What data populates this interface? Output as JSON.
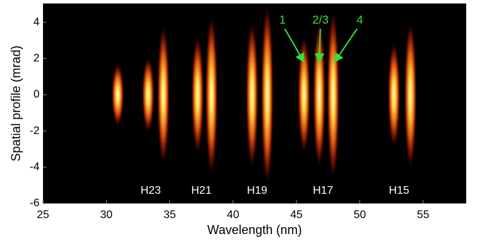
{
  "chart_data": {
    "type": "image",
    "xlabel": "Wavelength (nm)",
    "ylabel": "Spatial profile (mrad)",
    "xlim": [
      25,
      58.4
    ],
    "ylim": [
      -6,
      5.04
    ],
    "xticks": [
      25,
      30,
      35,
      40,
      45,
      50,
      55
    ],
    "yticks": [
      -6,
      -4,
      -2,
      0,
      2,
      4
    ],
    "emission": {
      "x": [
        30.9,
        33.3,
        34.5,
        37.2,
        38.3,
        41.5,
        42.7,
        45.6,
        46.8,
        47.9,
        52.7,
        54.0
      ],
      "values": [
        1.5,
        1.8,
        3.3,
        2.8,
        3.8,
        3.5,
        4.3,
        2.8,
        3.5,
        4.0,
        2.5,
        3.5
      ]
    },
    "harmonic_labels": [
      {
        "text": "H23",
        "x": 33.5,
        "y": -5.3
      },
      {
        "text": "H21",
        "x": 37.5,
        "y": -5.3
      },
      {
        "text": "H19",
        "x": 41.9,
        "y": -5.3
      },
      {
        "text": "H17",
        "x": 47.1,
        "y": -5.3
      },
      {
        "text": "H15",
        "x": 53.1,
        "y": -5.3
      }
    ],
    "annotations": [
      {
        "text": "1",
        "x": 43.9,
        "y": 4.1,
        "target_x": 45.6,
        "target_y": 1.8
      },
      {
        "text": "2/3",
        "x": 46.9,
        "y": 4.1,
        "target_x": 46.8,
        "target_y": 1.8
      },
      {
        "text": "4",
        "x": 50.0,
        "y": 4.1,
        "target_x": 48.0,
        "target_y": 1.8
      }
    ],
    "annotation_color": "#33e033"
  }
}
